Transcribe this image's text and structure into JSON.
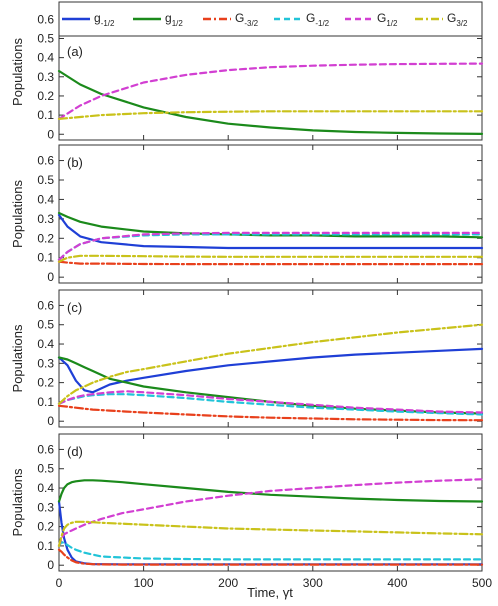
{
  "figure": {
    "xlabel": "Time, γt",
    "ylabel": "Populations"
  },
  "legend": [
    {
      "base": "g",
      "sub": "-1/2",
      "color": "#1f3fd6",
      "dash": "solid"
    },
    {
      "base": "g",
      "sub": "1/2",
      "color": "#1b8a1b",
      "dash": "solid"
    },
    {
      "base": "G",
      "sub": "-3/2",
      "color": "#e8401c",
      "dash": "dashdot"
    },
    {
      "base": "G",
      "sub": "-1/2",
      "color": "#22c4d8",
      "dash": "dash"
    },
    {
      "base": "G",
      "sub": "1/2",
      "color": "#d23fd2",
      "dash": "dash"
    },
    {
      "base": "G",
      "sub": "3/2",
      "color": "#c9c21a",
      "dash": "dashdot"
    }
  ],
  "chart_data": [
    {
      "type": "line",
      "panel_label": "(a)",
      "xlim": [
        0,
        500
      ],
      "ylim": [
        -0.03,
        0.68
      ],
      "x_ticks": [
        0,
        100,
        200,
        300,
        400,
        500
      ],
      "y_ticks": [
        0,
        0.1,
        0.2,
        0.3,
        0.4,
        0.5,
        0.6
      ],
      "x": [
        0,
        25,
        50,
        100,
        150,
        200,
        250,
        300,
        350,
        400,
        450,
        500
      ],
      "series": [
        {
          "name": "g-1/2",
          "values": [
            null,
            null,
            null,
            null,
            null,
            null,
            null,
            null,
            null,
            null,
            null,
            null
          ]
        },
        {
          "name": "g1/2",
          "values": [
            0.33,
            0.26,
            0.21,
            0.14,
            0.09,
            0.055,
            0.035,
            0.02,
            0.012,
            0.007,
            0.004,
            0.002
          ]
        },
        {
          "name": "G-3/2",
          "values": [
            null,
            null,
            null,
            null,
            null,
            null,
            null,
            null,
            null,
            null,
            null,
            null
          ]
        },
        {
          "name": "G-1/2",
          "values": [
            null,
            null,
            null,
            null,
            null,
            null,
            null,
            null,
            null,
            null,
            null,
            null
          ]
        },
        {
          "name": "G1/2",
          "values": [
            0.08,
            0.15,
            0.2,
            0.27,
            0.31,
            0.335,
            0.35,
            0.358,
            0.363,
            0.366,
            0.368,
            0.369
          ]
        },
        {
          "name": "G3/2",
          "values": [
            0.08,
            0.09,
            0.1,
            0.11,
            0.115,
            0.118,
            0.12,
            0.12,
            0.12,
            0.12,
            0.12,
            0.12
          ]
        }
      ]
    },
    {
      "type": "line",
      "panel_label": "(b)",
      "xlim": [
        0,
        500
      ],
      "ylim": [
        -0.03,
        0.68
      ],
      "x_ticks": [
        0,
        100,
        200,
        300,
        400,
        500
      ],
      "y_ticks": [
        0,
        0.1,
        0.2,
        0.3,
        0.4,
        0.5,
        0.6
      ],
      "x": [
        0,
        10,
        25,
        50,
        100,
        150,
        200,
        250,
        300,
        350,
        400,
        450,
        500
      ],
      "series": [
        {
          "name": "g-1/2",
          "values": [
            0.32,
            0.26,
            0.21,
            0.18,
            0.16,
            0.155,
            0.15,
            0.15,
            0.15,
            0.15,
            0.15,
            0.15,
            0.15
          ]
        },
        {
          "name": "g1/2",
          "values": [
            0.33,
            0.31,
            0.285,
            0.26,
            0.235,
            0.225,
            0.22,
            0.215,
            0.215,
            0.21,
            0.21,
            0.21,
            0.205
          ]
        },
        {
          "name": "G-3/2",
          "values": [
            0.08,
            0.075,
            0.07,
            0.07,
            0.068,
            0.067,
            0.067,
            0.067,
            0.067,
            0.067,
            0.067,
            0.067,
            0.067
          ]
        },
        {
          "name": "G-1/2",
          "values": [
            0.09,
            0.13,
            0.17,
            0.2,
            0.215,
            0.22,
            0.22,
            0.22,
            0.22,
            0.22,
            0.22,
            0.22,
            0.22
          ]
        },
        {
          "name": "G1/2",
          "values": [
            0.09,
            0.13,
            0.17,
            0.2,
            0.22,
            0.225,
            0.228,
            0.228,
            0.228,
            0.228,
            0.228,
            0.228,
            0.228
          ]
        },
        {
          "name": "G3/2",
          "values": [
            0.08,
            0.1,
            0.11,
            0.11,
            0.108,
            0.106,
            0.105,
            0.105,
            0.105,
            0.105,
            0.105,
            0.105,
            0.105
          ]
        }
      ]
    },
    {
      "type": "line",
      "panel_label": "(c)",
      "xlim": [
        0,
        500
      ],
      "ylim": [
        -0.03,
        0.68
      ],
      "x_ticks": [
        0,
        100,
        200,
        300,
        400,
        500
      ],
      "y_ticks": [
        0,
        0.1,
        0.2,
        0.3,
        0.4,
        0.5,
        0.6
      ],
      "x": [
        0,
        10,
        20,
        30,
        40,
        60,
        80,
        100,
        150,
        200,
        250,
        300,
        350,
        400,
        450,
        500
      ],
      "series": [
        {
          "name": "g-1/2",
          "values": [
            0.33,
            0.29,
            0.21,
            0.16,
            0.15,
            0.19,
            0.21,
            0.225,
            0.26,
            0.29,
            0.31,
            0.33,
            0.345,
            0.355,
            0.365,
            0.375
          ]
        },
        {
          "name": "g1/2",
          "values": [
            0.33,
            0.32,
            0.3,
            0.28,
            0.26,
            0.22,
            0.2,
            0.18,
            0.15,
            0.125,
            0.1,
            0.08,
            0.065,
            0.055,
            0.045,
            0.04
          ]
        },
        {
          "name": "G-3/2",
          "values": [
            0.08,
            0.075,
            0.07,
            0.065,
            0.06,
            0.055,
            0.05,
            0.045,
            0.035,
            0.025,
            0.018,
            0.014,
            0.01,
            0.008,
            0.006,
            0.005
          ]
        },
        {
          "name": "G-1/2",
          "values": [
            0.09,
            0.11,
            0.12,
            0.13,
            0.135,
            0.14,
            0.14,
            0.135,
            0.12,
            0.1,
            0.085,
            0.07,
            0.06,
            0.05,
            0.042,
            0.035
          ]
        },
        {
          "name": "G1/2",
          "values": [
            0.09,
            0.11,
            0.125,
            0.135,
            0.14,
            0.15,
            0.155,
            0.15,
            0.135,
            0.115,
            0.1,
            0.085,
            0.07,
            0.06,
            0.05,
            0.045
          ]
        },
        {
          "name": "G3/2",
          "values": [
            0.09,
            0.13,
            0.16,
            0.18,
            0.2,
            0.23,
            0.255,
            0.27,
            0.31,
            0.35,
            0.38,
            0.41,
            0.435,
            0.46,
            0.48,
            0.5
          ]
        }
      ]
    },
    {
      "type": "line",
      "panel_label": "(d)",
      "xlim": [
        0,
        500
      ],
      "ylim": [
        -0.03,
        0.68
      ],
      "x_ticks": [
        0,
        100,
        200,
        300,
        400,
        500
      ],
      "y_ticks": [
        0,
        0.1,
        0.2,
        0.3,
        0.4,
        0.5,
        0.6
      ],
      "x": [
        0,
        3,
        6,
        10,
        15,
        20,
        30,
        40,
        50,
        75,
        100,
        150,
        200,
        250,
        300,
        350,
        400,
        450,
        500
      ],
      "series": [
        {
          "name": "g-1/2",
          "values": [
            0.33,
            0.22,
            0.14,
            0.08,
            0.04,
            0.02,
            0.01,
            0.006,
            0.005,
            0.004,
            0.004,
            0.004,
            0.004,
            0.004,
            0.004,
            0.004,
            0.004,
            0.004,
            0.004
          ]
        },
        {
          "name": "g1/2",
          "values": [
            0.33,
            0.37,
            0.4,
            0.42,
            0.43,
            0.435,
            0.44,
            0.44,
            0.438,
            0.43,
            0.42,
            0.4,
            0.38,
            0.365,
            0.355,
            0.345,
            0.338,
            0.333,
            0.33
          ]
        },
        {
          "name": "G-3/2",
          "values": [
            0.08,
            0.07,
            0.055,
            0.04,
            0.025,
            0.015,
            0.008,
            0.005,
            0.004,
            0.003,
            0.003,
            0.003,
            0.003,
            0.003,
            0.003,
            0.003,
            0.003,
            0.003,
            0.003
          ]
        },
        {
          "name": "G-1/2",
          "values": [
            0.1,
            0.12,
            0.115,
            0.105,
            0.09,
            0.08,
            0.065,
            0.055,
            0.045,
            0.04,
            0.035,
            0.032,
            0.03,
            0.03,
            0.03,
            0.03,
            0.03,
            0.03,
            0.03
          ]
        },
        {
          "name": "G1/2",
          "values": [
            0.1,
            0.14,
            0.16,
            0.17,
            0.18,
            0.19,
            0.21,
            0.225,
            0.24,
            0.27,
            0.29,
            0.33,
            0.36,
            0.385,
            0.4,
            0.415,
            0.428,
            0.438,
            0.445
          ]
        },
        {
          "name": "G3/2",
          "values": [
            0.1,
            0.15,
            0.19,
            0.21,
            0.22,
            0.225,
            0.225,
            0.223,
            0.22,
            0.215,
            0.21,
            0.2,
            0.19,
            0.185,
            0.18,
            0.175,
            0.17,
            0.165,
            0.16
          ]
        }
      ]
    }
  ]
}
